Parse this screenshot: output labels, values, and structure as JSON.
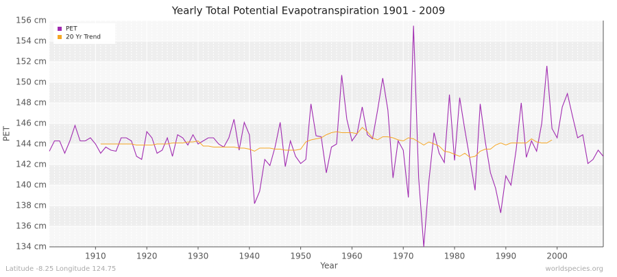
{
  "chart_data": {
    "type": "line",
    "title": "Yearly Total Potential Evapotranspiration 1901 - 2009",
    "x_label": "Year",
    "y_label": "PET",
    "footer_left": "Latitude -8.25 Longitude 124.75",
    "footer_right": "worldspecies.org",
    "legend": "top-left",
    "grid": true,
    "x": [
      1901,
      1902,
      1903,
      1904,
      1905,
      1906,
      1907,
      1908,
      1909,
      1910,
      1911,
      1912,
      1913,
      1914,
      1915,
      1916,
      1917,
      1918,
      1919,
      1920,
      1921,
      1922,
      1923,
      1924,
      1925,
      1926,
      1927,
      1928,
      1929,
      1930,
      1931,
      1932,
      1933,
      1934,
      1935,
      1936,
      1937,
      1938,
      1939,
      1940,
      1941,
      1942,
      1943,
      1944,
      1945,
      1946,
      1947,
      1948,
      1949,
      1950,
      1951,
      1952,
      1953,
      1954,
      1955,
      1956,
      1957,
      1958,
      1959,
      1960,
      1961,
      1962,
      1963,
      1964,
      1965,
      1966,
      1967,
      1968,
      1969,
      1970,
      1971,
      1972,
      1973,
      1974,
      1975,
      1976,
      1977,
      1978,
      1979,
      1980,
      1981,
      1982,
      1983,
      1984,
      1985,
      1986,
      1987,
      1988,
      1989,
      1990,
      1991,
      1992,
      1993,
      1994,
      1995,
      1996,
      1997,
      1998,
      1999,
      2000,
      2001,
      2002,
      2003,
      2004,
      2005,
      2006,
      2007,
      2008,
      2009
    ],
    "series": [
      {
        "name": "PET",
        "color": "#a02ab0",
        "values": [
          143.3,
          144.3,
          144.3,
          143.1,
          144.3,
          145.8,
          144.3,
          144.3,
          144.6,
          144.0,
          143.1,
          143.7,
          143.4,
          143.3,
          144.6,
          144.6,
          144.3,
          142.8,
          142.5,
          145.2,
          144.6,
          143.1,
          143.4,
          144.6,
          142.8,
          144.9,
          144.6,
          143.9,
          144.9,
          144.0,
          144.3,
          144.6,
          144.6,
          144.0,
          143.7,
          144.6,
          146.4,
          143.4,
          146.1,
          144.9,
          138.2,
          139.4,
          142.5,
          141.9,
          143.7,
          146.1,
          141.8,
          144.3,
          142.8,
          142.1,
          142.5,
          147.9,
          144.8,
          144.7,
          141.2,
          143.7,
          144.0,
          150.7,
          146.4,
          144.3,
          145.0,
          147.6,
          144.9,
          144.5,
          147.3,
          150.4,
          147.3,
          140.7,
          144.3,
          143.4,
          138.8,
          155.5,
          140.7,
          134.0,
          140.4,
          145.1,
          143.1,
          142.2,
          148.8,
          142.4,
          148.5,
          145.4,
          142.5,
          139.5,
          147.9,
          144.2,
          141.2,
          139.7,
          137.3,
          140.9,
          140.0,
          143.4,
          148.0,
          142.7,
          144.3,
          143.3,
          146.0,
          151.6,
          145.5,
          144.6,
          147.6,
          148.9,
          146.7,
          144.6,
          144.9,
          142.1,
          142.5,
          143.4,
          142.8
        ]
      },
      {
        "name": "20 Yr Trend",
        "color": "#f5a623",
        "values": [
          null,
          null,
          null,
          null,
          null,
          null,
          null,
          null,
          null,
          null,
          144.0,
          144.0,
          144.0,
          144.0,
          144.0,
          144.0,
          144.0,
          143.9,
          143.9,
          143.9,
          143.9,
          144.0,
          144.0,
          144.0,
          144.1,
          144.1,
          144.1,
          144.2,
          144.2,
          144.3,
          143.8,
          143.8,
          143.7,
          143.7,
          143.7,
          143.7,
          143.7,
          143.6,
          143.6,
          143.5,
          143.3,
          143.6,
          143.6,
          143.6,
          143.5,
          143.5,
          143.4,
          143.4,
          143.4,
          143.5,
          144.2,
          144.4,
          144.5,
          144.6,
          144.9,
          145.1,
          145.2,
          145.1,
          145.1,
          145.1,
          145.0,
          145.6,
          145.2,
          144.6,
          144.4,
          144.7,
          144.7,
          144.6,
          144.4,
          144.3,
          144.6,
          144.5,
          144.2,
          143.9,
          144.2,
          144.0,
          143.8,
          143.3,
          143.2,
          143.0,
          142.8,
          143.1,
          142.7,
          142.8,
          143.3,
          143.5,
          143.5,
          143.9,
          144.1,
          143.9,
          144.1,
          144.1,
          144.1,
          144.1,
          144.5,
          144.2,
          144.1,
          144.1,
          144.4,
          null,
          null,
          null,
          null,
          null,
          null,
          null,
          null,
          null,
          null
        ]
      }
    ],
    "xlim": [
      1901,
      2009
    ],
    "xticks": [
      1910,
      1920,
      1930,
      1940,
      1950,
      1960,
      1970,
      1980,
      1990,
      2000
    ],
    "ylim": [
      134,
      156
    ],
    "yticks": [
      {
        "value": 134,
        "label": "134 cm"
      },
      {
        "value": 136,
        "label": "136 cm"
      },
      {
        "value": 138,
        "label": "138 cm"
      },
      {
        "value": 140,
        "label": "140 cm"
      },
      {
        "value": 142,
        "label": "142 cm"
      },
      {
        "value": 144,
        "label": "144 cm"
      },
      {
        "value": 146,
        "label": "146 cm"
      },
      {
        "value": 148,
        "label": "148 cm"
      },
      {
        "value": 150,
        "label": "150 cm"
      },
      {
        "value": 152,
        "label": "152 cm"
      },
      {
        "value": 154,
        "label": "154 cm"
      },
      {
        "value": 156,
        "label": "156 cm"
      }
    ]
  }
}
